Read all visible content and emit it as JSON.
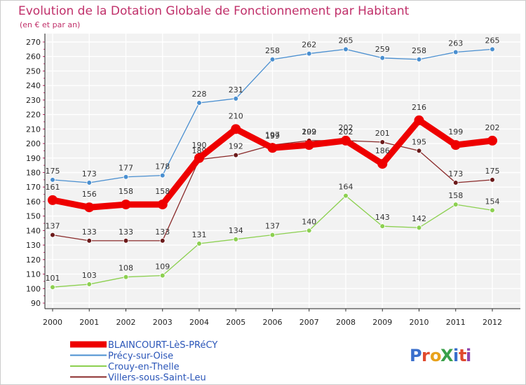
{
  "colors": {
    "background": "#ffffff",
    "plot_background": "#f2f2f2",
    "title": "#c0306a",
    "legend_text": "#2a55b8",
    "axis_tick_marks": "#c0306a"
  },
  "logo": {
    "text": "ProXiti",
    "letters": [
      "P",
      "r",
      "o",
      "X",
      "i",
      "t",
      "i"
    ],
    "letter_colors": [
      "#3a6fcc",
      "#e04a2e",
      "#e8a21c",
      "#3aa04a",
      "#3a6fcc",
      "#e04a2e",
      "#8e44ad"
    ]
  },
  "chart_data": {
    "type": "line",
    "title": "Evolution de la Dotation Globale de Fonctionnement par Habitant",
    "subtitle": "(en € et par an)",
    "xlabel": "",
    "ylabel": "",
    "ylim": [
      90,
      270
    ],
    "ytick_step": 10,
    "grid": true,
    "legend_position": "bottom-left",
    "x": [
      "2000",
      "2001",
      "2002",
      "2003",
      "2004",
      "2005",
      "2006",
      "2007",
      "2008",
      "2009",
      "2010",
      "2011",
      "2012"
    ],
    "series": [
      {
        "name": "Précy-sur-Oise",
        "color": "#4a8fd0",
        "point_color": "#4a8fd0",
        "values": [
          175,
          173,
          177,
          178,
          228,
          231,
          258,
          262,
          265,
          259,
          258,
          263,
          265
        ],
        "labels": [
          "175",
          "173",
          "177",
          "178",
          "228",
          "231",
          "258",
          "262",
          "265",
          "259",
          "258",
          "263",
          "265"
        ]
      },
      {
        "name": "Crouy-en-Thelle",
        "color": "#8cd050",
        "point_color": "#8cd050",
        "values": [
          101,
          103,
          108,
          109,
          131,
          134,
          137,
          140,
          164,
          143,
          142,
          158,
          154
        ],
        "labels": [
          "101",
          "103",
          "108",
          "109",
          "131",
          "134",
          "137",
          "140",
          "164",
          "143",
          "142",
          "158",
          "154"
        ]
      },
      {
        "name": "Villers-sous-Saint-Leu",
        "color": "#8a2a2a",
        "point_color": "#6b1a1a",
        "values": [
          137,
          133,
          133,
          133,
          189,
          192,
          199,
          202,
          202,
          201,
          195,
          173,
          175
        ],
        "labels": [
          "137",
          "133",
          "133",
          "133",
          "189",
          "192",
          "199",
          "202",
          "202",
          "201",
          "195",
          "173",
          "175"
        ]
      },
      {
        "name": "BLAINCOURT-LèS-PRéCY",
        "color": "#ee0000",
        "point_color": "#ee0000",
        "values": [
          161,
          156,
          158,
          158,
          190,
          210,
          197,
          199,
          202,
          186,
          216,
          199,
          202
        ],
        "labels": [
          "161",
          "156",
          "158",
          "158",
          "190",
          "210",
          "197",
          "199",
          "202",
          "186",
          "216",
          "199",
          "202"
        ]
      }
    ],
    "legend_order": [
      "BLAINCOURT-LèS-PRéCY",
      "Précy-sur-Oise",
      "Crouy-en-Thelle",
      "Villers-sous-Saint-Leu"
    ]
  }
}
